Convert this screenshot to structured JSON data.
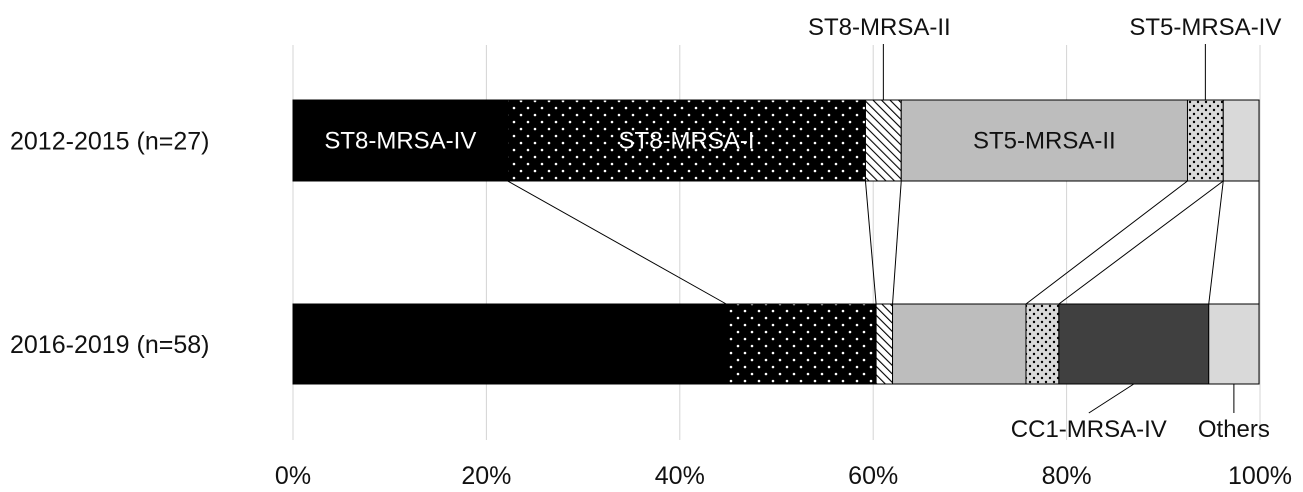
{
  "chart_data": {
    "type": "bar",
    "orientation": "horizontal",
    "stacked": true,
    "normalized_percent": true,
    "title": "",
    "xlabel": "",
    "ylabel": "",
    "xlim": [
      0,
      100
    ],
    "grid": true,
    "x_ticks": [
      "0%",
      "20%",
      "40%",
      "60%",
      "80%",
      "100%"
    ],
    "categories": [
      "2012-2015 (n=27)",
      "2016-2019 (n=58)"
    ],
    "series": [
      {
        "name": "ST8-MRSA-IV",
        "values": [
          22.2,
          44.8
        ],
        "fill": "#000000",
        "pattern": "solid"
      },
      {
        "name": "ST8-MRSA-I",
        "values": [
          37.0,
          15.5
        ],
        "fill": "#000000",
        "pattern": "white-dots"
      },
      {
        "name": "ST8-MRSA-II",
        "values": [
          3.7,
          1.7
        ],
        "fill": "#ffffff",
        "pattern": "hatch"
      },
      {
        "name": "ST5-MRSA-II",
        "values": [
          29.6,
          13.8
        ],
        "fill": "#bdbdbd",
        "pattern": "solid"
      },
      {
        "name": "ST5-MRSA-IV",
        "values": [
          3.7,
          3.4
        ],
        "fill": "#d9d9d9",
        "pattern": "black-dots"
      },
      {
        "name": "CC1-MRSA-IV",
        "values": [
          0,
          15.5
        ],
        "fill": "#404040",
        "pattern": "solid"
      },
      {
        "name": "Others",
        "values": [
          3.7,
          5.2
        ],
        "fill": "#d9d9d9",
        "pattern": "solid"
      }
    ],
    "inside_labels": [
      {
        "series": 0,
        "row": 0,
        "text": "ST8-MRSA-IV",
        "color": "#ffffff"
      },
      {
        "series": 1,
        "row": 0,
        "text": "ST8-MRSA-I",
        "color": "#ffffff"
      },
      {
        "series": 3,
        "row": 0,
        "text": "ST5-MRSA-II",
        "color": "#111111"
      }
    ],
    "callouts": [
      {
        "series": 2,
        "row": 0,
        "text": "ST8-MRSA-II",
        "position": "above"
      },
      {
        "series": 4,
        "row": 0,
        "text": "ST5-MRSA-IV",
        "position": "above"
      },
      {
        "series": 5,
        "row": 1,
        "text": "CC1-MRSA-IV",
        "position": "below"
      },
      {
        "series": 6,
        "row": 1,
        "text": "Others",
        "position": "below"
      }
    ]
  }
}
